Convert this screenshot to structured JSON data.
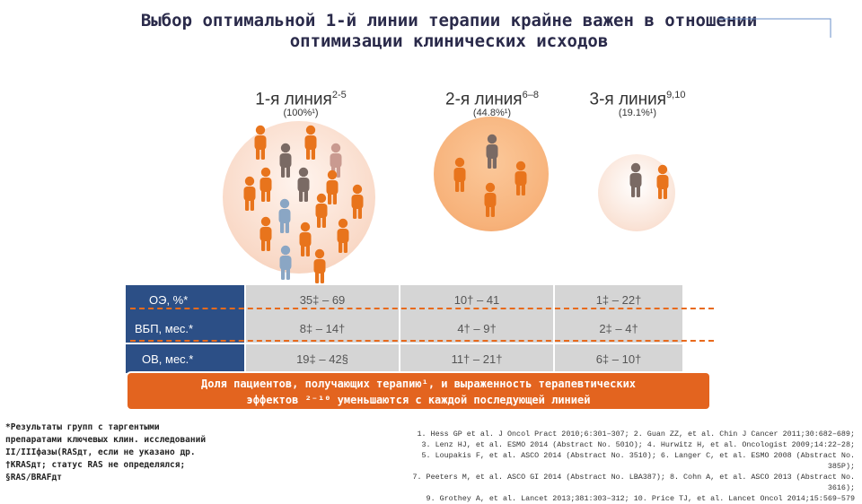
{
  "title": {
    "line1": "Выбор оптимальной 1-й линии терапии крайне важен в отношении",
    "line2": "оптимизации клинических исходов"
  },
  "columns": [
    {
      "label": "1-я линия",
      "sup": "2-5",
      "pct": "(100%¹)"
    },
    {
      "label": "2-я линия",
      "sup": "6–8",
      "pct": "(44.8%¹)"
    },
    {
      "label": "3-я линия",
      "sup": "9,10",
      "pct": "(19.1%¹)"
    }
  ],
  "rows": [
    {
      "label": "ОЭ, %*",
      "values": [
        "35‡ – 69",
        "10† – 41",
        "1‡ – 22†"
      ]
    },
    {
      "label": "ВБП, мес.*",
      "values": [
        "8‡ – 14†",
        "4† – 9†",
        "2‡ – 4†"
      ]
    },
    {
      "label": "ОВ, мес.*",
      "values": [
        "19‡ – 42§",
        "11† – 21†",
        "6‡ – 10†"
      ]
    }
  ],
  "banner": {
    "line1": "Доля пациентов, получающих терапию¹, и выраженность терапевтических",
    "line2": "эффектов ²⁻¹⁰ уменьшаются с каждой последующей линией"
  },
  "footnotes_left": [
    "*Результаты групп с таргентыми",
    "препаратами ключевых клин. исследований",
    "II/IIIфазы(RASдт, если не указано др.",
    "†KRASдт; статус RAS не определялся;",
    "§RAS/BRAFдт"
  ],
  "references": [
    "1. Hess GP et al. J Oncol Pract 2010;6:301–307; 2. Guan ZZ, et al. Chin J Cancer 2011;30:682–689;",
    "3. Lenz HJ, et al. ESMO 2014 (Abstract No. 501O); 4. Hurwitz H, et al. Oncologist 2009;14:22–28;",
    "5. Loupakis F, et al. ASCO 2014 (Abstract No. 3510); 6. Langer C, et al. ESMO 2008 (Abstract No. 385P);",
    "7. Peeters M, et al. ASCO GI 2014 (Abstract No. LBA387); 8. Cohn A, et al. ASCO 2013 (Abstract No. 3616);",
    "9. Grothey A, et al. Lancet 2013;381:303–312; 10. Price TJ, et al. Lancet Oncol 2014;15:569–579"
  ],
  "colors": {
    "orange": "#e8741c",
    "brown": "#7a6a64",
    "rose": "#c99a90",
    "blue": "#8aa6c4",
    "navy": "#2c4f86"
  }
}
